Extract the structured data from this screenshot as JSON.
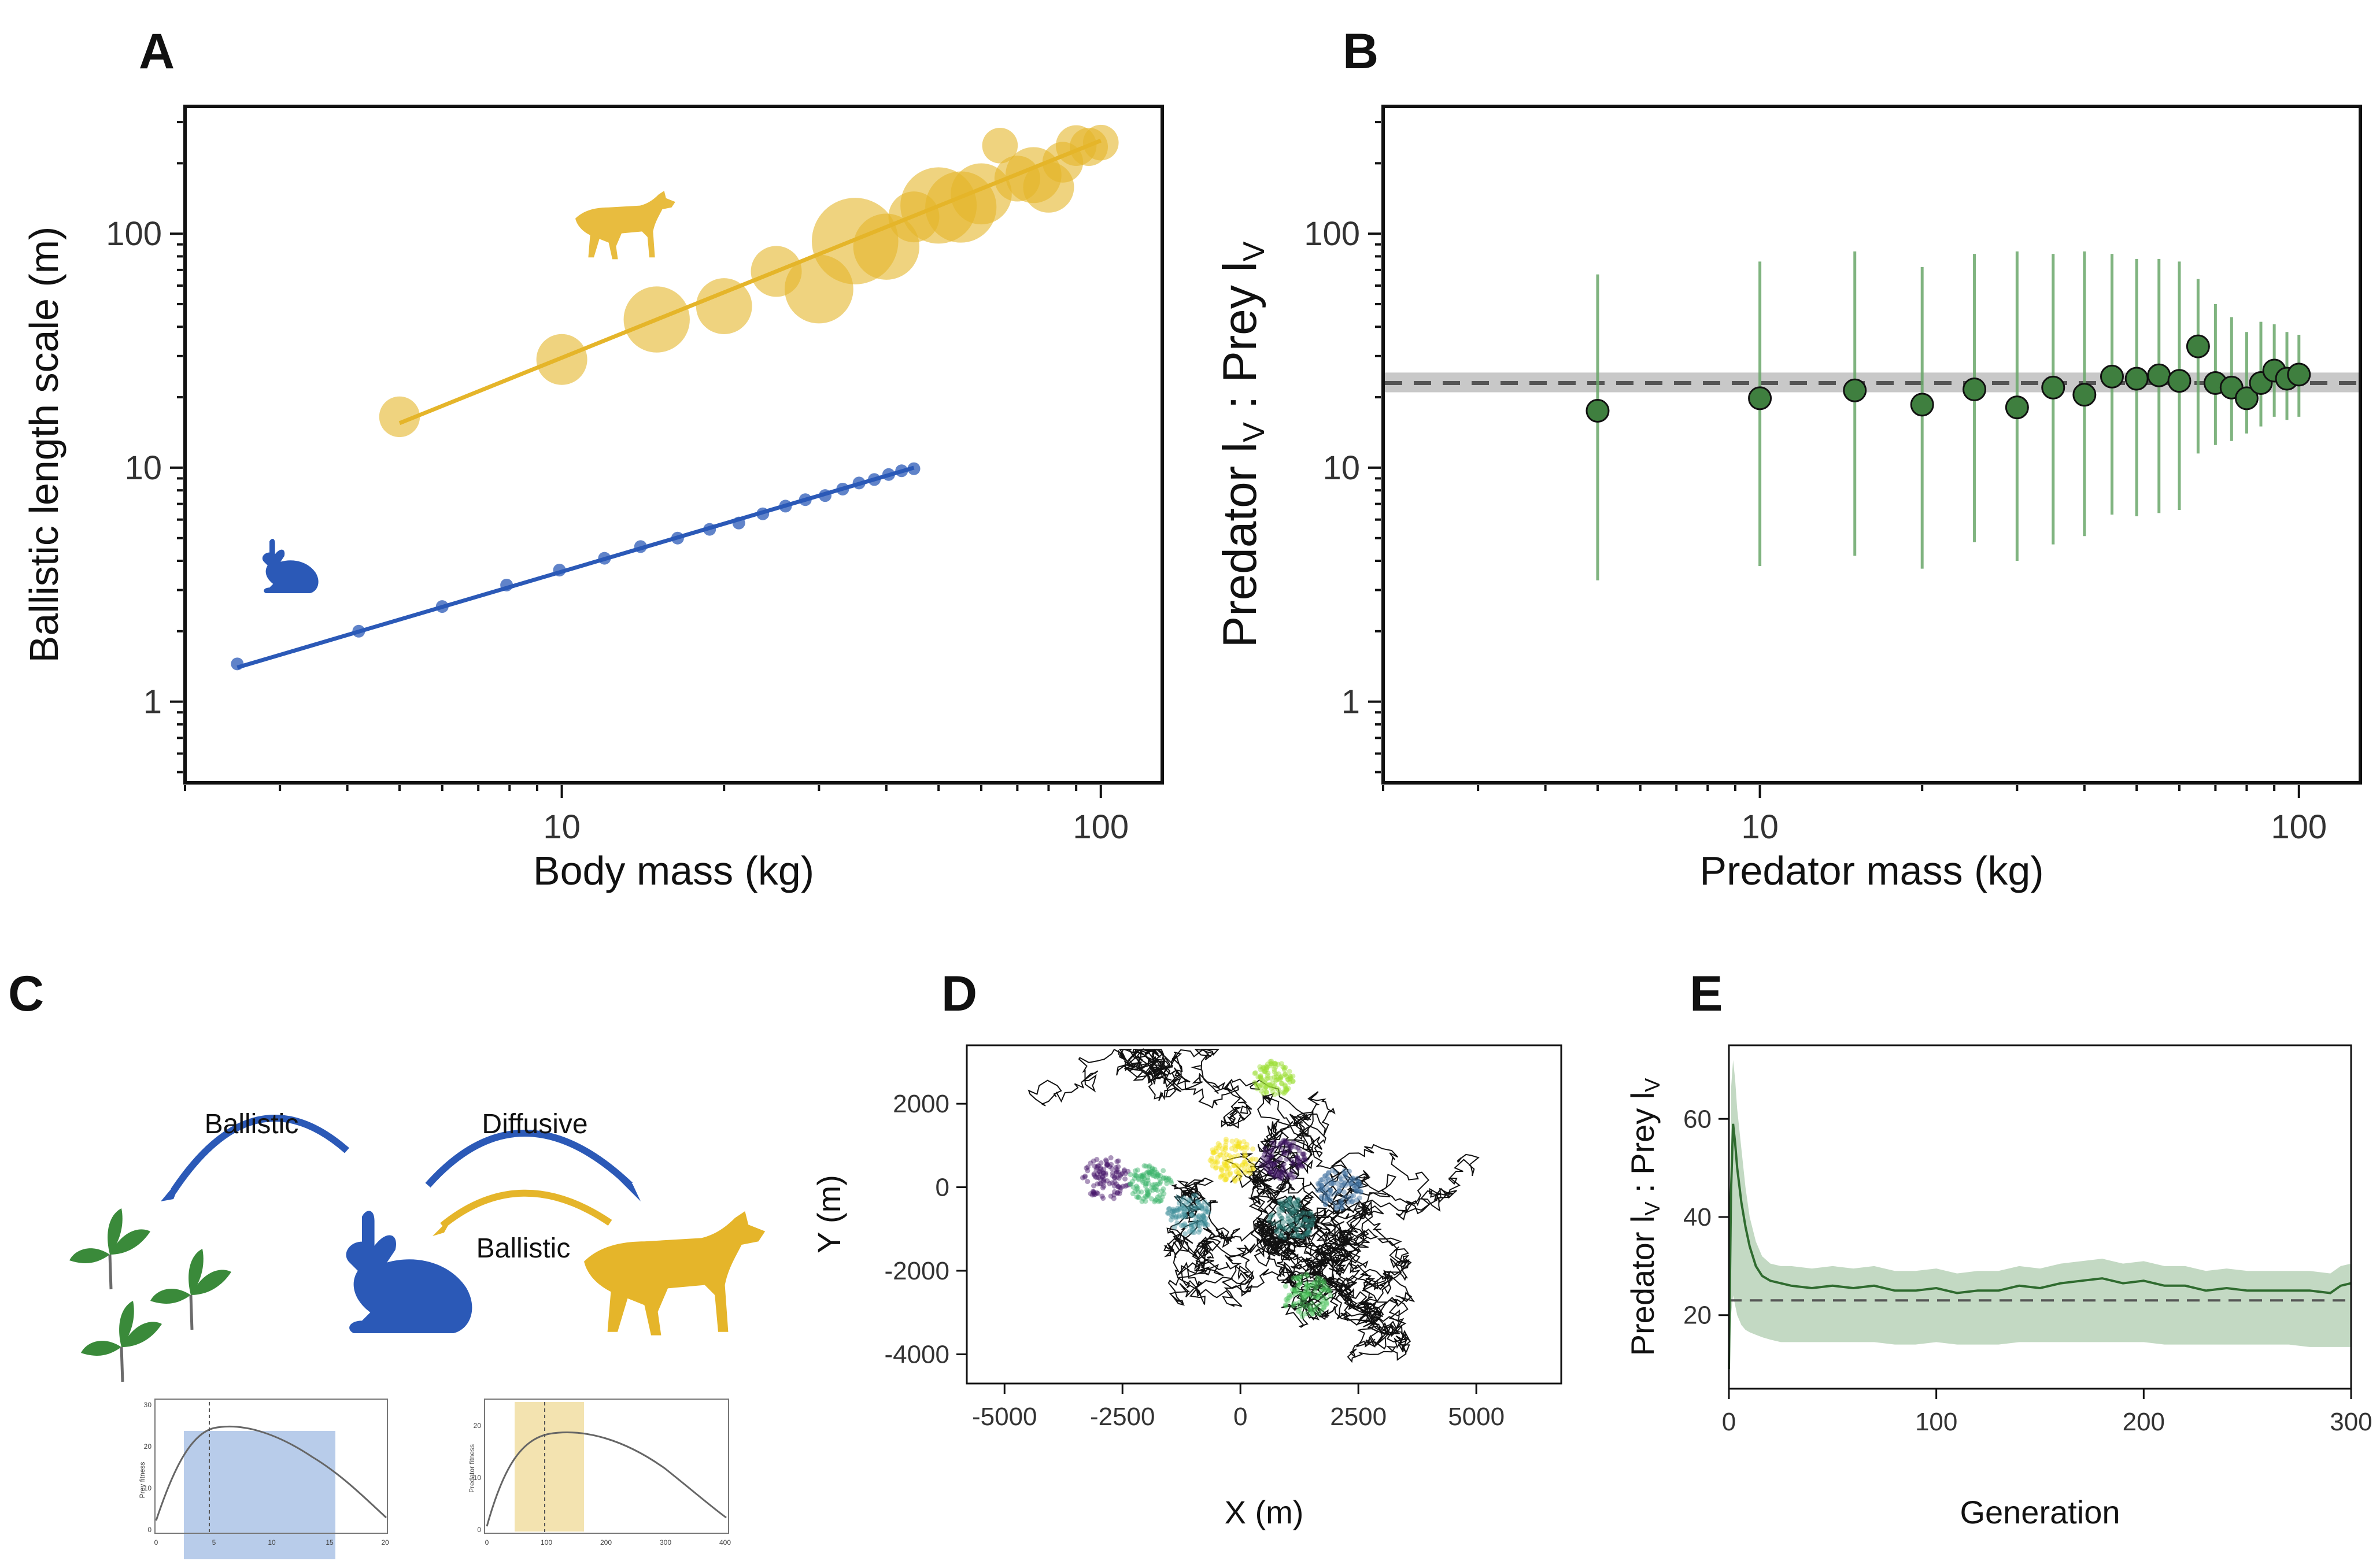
{
  "panels": {
    "A": "A",
    "B": "B",
    "C": "C",
    "D": "D",
    "E": "E"
  },
  "chart_data": [
    {
      "id": "A",
      "type": "scatter",
      "xlabel": "Body mass (kg)",
      "ylabel": "Ballistic length scale (m)",
      "xscale": "log",
      "yscale": "log",
      "xlim": [
        2.0,
        130
      ],
      "ylim": [
        0.45,
        350
      ],
      "xticks": [
        10,
        100
      ],
      "xtick_labels": [
        "10",
        "100"
      ],
      "yticks": [
        1,
        10,
        100
      ],
      "ytick_labels": [
        "1",
        "10",
        "100"
      ],
      "series": [
        {
          "color": "#e5b52a",
          "points": [
            {
              "x": 5.0,
              "y": 16.5,
              "s": 1.6
            },
            {
              "x": 10.0,
              "y": 29,
              "s": 2.0
            },
            {
              "x": 15.0,
              "y": 43,
              "s": 2.6
            },
            {
              "x": 20.0,
              "y": 49,
              "s": 2.2
            },
            {
              "x": 25.0,
              "y": 69,
              "s": 2.0
            },
            {
              "x": 30.0,
              "y": 58,
              "s": 2.7
            },
            {
              "x": 35.0,
              "y": 93,
              "s": 3.4
            },
            {
              "x": 40.0,
              "y": 88,
              "s": 2.6
            },
            {
              "x": 45.0,
              "y": 118,
              "s": 2.0
            },
            {
              "x": 50.0,
              "y": 132,
              "s": 3.0
            },
            {
              "x": 55.0,
              "y": 130,
              "s": 2.8
            },
            {
              "x": 60.0,
              "y": 148,
              "s": 2.4
            },
            {
              "x": 65.0,
              "y": 238,
              "s": 1.4
            },
            {
              "x": 70.0,
              "y": 172,
              "s": 1.8
            },
            {
              "x": 75.0,
              "y": 178,
              "s": 2.2
            },
            {
              "x": 80.0,
              "y": 158,
              "s": 2.0
            },
            {
              "x": 85.0,
              "y": 202,
              "s": 1.6
            },
            {
              "x": 90.0,
              "y": 238,
              "s": 1.6
            },
            {
              "x": 95.0,
              "y": 235,
              "s": 1.5
            },
            {
              "x": 100.0,
              "y": 245,
              "s": 1.4
            }
          ],
          "fit": {
            "x": [
              5,
              100
            ],
            "y": [
              15.5,
              250
            ]
          }
        },
        {
          "color": "#2b59b7",
          "points": [
            {
              "x": 2.5,
              "y": 1.45
            },
            {
              "x": 4.2,
              "y": 2.0
            },
            {
              "x": 6.0,
              "y": 2.55
            },
            {
              "x": 7.9,
              "y": 3.15
            },
            {
              "x": 9.9,
              "y": 3.65
            },
            {
              "x": 12.0,
              "y": 4.1
            },
            {
              "x": 14.0,
              "y": 4.6
            },
            {
              "x": 16.4,
              "y": 5.0
            },
            {
              "x": 18.8,
              "y": 5.45
            },
            {
              "x": 21.3,
              "y": 5.8
            },
            {
              "x": 23.6,
              "y": 6.35
            },
            {
              "x": 26.0,
              "y": 6.85
            },
            {
              "x": 28.3,
              "y": 7.3
            },
            {
              "x": 30.8,
              "y": 7.6
            },
            {
              "x": 33.2,
              "y": 8.1
            },
            {
              "x": 35.6,
              "y": 8.6
            },
            {
              "x": 38.0,
              "y": 8.9
            },
            {
              "x": 40.4,
              "y": 9.35
            },
            {
              "x": 42.7,
              "y": 9.7
            },
            {
              "x": 45.0,
              "y": 9.9
            }
          ],
          "fit": {
            "x": [
              2.5,
              45
            ],
            "y": [
              1.4,
              10.0
            ]
          }
        }
      ]
    },
    {
      "id": "B",
      "type": "scatter",
      "xlabel": "Predator mass (kg)",
      "ylabel_parts": [
        "Predator l",
        "V",
        " : Prey l",
        "V"
      ],
      "xscale": "log",
      "yscale": "log",
      "xlim": [
        2.0,
        130
      ],
      "ylim": [
        0.45,
        350
      ],
      "xticks": [
        10,
        100
      ],
      "xtick_labels": [
        "10",
        "100"
      ],
      "yticks": [
        1,
        10,
        100
      ],
      "ytick_labels": [
        "1",
        "10",
        "100"
      ],
      "reference_line": {
        "y": 23,
        "band": [
          21,
          25.5
        ]
      },
      "points": [
        {
          "x": 5,
          "y": 17.5,
          "lo": 3.3,
          "hi": 67
        },
        {
          "x": 10,
          "y": 19.8,
          "lo": 3.8,
          "hi": 76
        },
        {
          "x": 15,
          "y": 21.4,
          "lo": 4.2,
          "hi": 84
        },
        {
          "x": 20,
          "y": 18.6,
          "lo": 3.7,
          "hi": 72
        },
        {
          "x": 25,
          "y": 21.6,
          "lo": 4.8,
          "hi": 82
        },
        {
          "x": 30,
          "y": 18.1,
          "lo": 4.0,
          "hi": 84
        },
        {
          "x": 35,
          "y": 22.0,
          "lo": 4.7,
          "hi": 82
        },
        {
          "x": 40,
          "y": 20.5,
          "lo": 5.1,
          "hi": 84
        },
        {
          "x": 45,
          "y": 24.5,
          "lo": 6.3,
          "hi": 82
        },
        {
          "x": 50,
          "y": 24.0,
          "lo": 6.2,
          "hi": 78
        },
        {
          "x": 55,
          "y": 24.8,
          "lo": 6.4,
          "hi": 78
        },
        {
          "x": 60,
          "y": 23.5,
          "lo": 6.6,
          "hi": 76
        },
        {
          "x": 65,
          "y": 33.0,
          "lo": 11.5,
          "hi": 64
        },
        {
          "x": 70,
          "y": 23.0,
          "lo": 12.5,
          "hi": 50
        },
        {
          "x": 75,
          "y": 22.0,
          "lo": 13.0,
          "hi": 44
        },
        {
          "x": 80,
          "y": 19.8,
          "lo": 14.0,
          "hi": 38
        },
        {
          "x": 85,
          "y": 23.0,
          "lo": 15.0,
          "hi": 42
        },
        {
          "x": 90,
          "y": 26.0,
          "lo": 16.5,
          "hi": 41
        },
        {
          "x": 95,
          "y": 24.0,
          "lo": 16.0,
          "hi": 38
        },
        {
          "x": 100,
          "y": 25.0,
          "lo": 16.5,
          "hi": 37
        }
      ]
    },
    {
      "id": "D",
      "type": "scatter",
      "xlabel": "X (m)",
      "ylabel": "Y (m)",
      "xlim": [
        -5800,
        6800
      ],
      "ylim": [
        -4700,
        3400
      ],
      "xticks": [
        -5000,
        -2500,
        0,
        2500,
        5000
      ],
      "xtick_labels": [
        "-5000",
        "-2500",
        "0",
        "2500",
        "5000"
      ],
      "yticks": [
        -4000,
        -2000,
        0,
        2000
      ],
      "ytick_labels": [
        "-4000",
        "-2000",
        "0",
        "2000"
      ],
      "clusters": [
        {
          "cx": -2850,
          "cy": 200,
          "r": 520,
          "color": "#46166b"
        },
        {
          "cx": -1900,
          "cy": 100,
          "r": 480,
          "color": "#3cb46a"
        },
        {
          "cx": -1100,
          "cy": -650,
          "r": 480,
          "color": "#3f8d9a"
        },
        {
          "cx": -150,
          "cy": 650,
          "r": 520,
          "color": "#f4e017"
        },
        {
          "cx": 900,
          "cy": 650,
          "r": 480,
          "color": "#3e1762"
        },
        {
          "cx": 1100,
          "cy": -750,
          "r": 500,
          "color": "#2c7c75"
        },
        {
          "cx": 2100,
          "cy": -50,
          "r": 480,
          "color": "#3d6f9e"
        },
        {
          "cx": 700,
          "cy": 2600,
          "r": 420,
          "color": "#9bde33"
        },
        {
          "cx": 1400,
          "cy": -2600,
          "r": 520,
          "color": "#4cc45a"
        }
      ]
    },
    {
      "id": "E",
      "type": "line",
      "xlabel": "Generation",
      "ylabel_parts": [
        "Predator l",
        "V",
        " : Prey l",
        "V"
      ],
      "xlim": [
        0,
        300
      ],
      "ylim": [
        5,
        75
      ],
      "xticks": [
        0,
        100,
        200,
        300
      ],
      "xtick_labels": [
        "0",
        "100",
        "200",
        "300"
      ],
      "yticks": [
        20,
        40,
        60
      ],
      "ytick_labels": [
        "20",
        "40",
        "60"
      ],
      "reference_line": {
        "y": 23
      },
      "series": [
        {
          "color": "#2f6b2f",
          "x": [
            0,
            1,
            2,
            3,
            4,
            6,
            8,
            10,
            13,
            16,
            20,
            25,
            30,
            40,
            50,
            60,
            70,
            80,
            90,
            100,
            110,
            120,
            130,
            140,
            150,
            160,
            170,
            180,
            190,
            200,
            210,
            220,
            230,
            240,
            250,
            260,
            270,
            280,
            290,
            295,
            300
          ],
          "y": [
            9,
            45,
            59,
            55,
            50,
            43,
            38,
            34,
            30,
            28,
            27,
            26.5,
            26,
            25.5,
            26,
            25.5,
            26,
            25,
            25,
            25.5,
            24.5,
            25,
            25,
            26,
            25.5,
            26.5,
            27,
            27.5,
            26.5,
            27,
            26,
            26,
            25,
            25.5,
            25,
            25,
            25,
            25,
            24.5,
            26,
            26.5
          ],
          "upper": [
            12,
            66,
            72,
            68,
            62,
            54,
            46,
            40,
            35,
            32,
            30.5,
            30,
            30,
            29.5,
            30,
            29.5,
            30,
            29,
            29,
            29.5,
            28.5,
            29,
            29,
            30,
            29.5,
            30.5,
            31,
            31.5,
            30.5,
            31,
            30,
            30,
            29,
            29.5,
            29,
            29,
            29,
            29,
            28.5,
            30,
            30.5
          ],
          "lower": [
            6,
            20,
            24,
            22,
            20,
            18,
            17,
            16.5,
            16,
            15.5,
            15,
            14.5,
            14.5,
            14.5,
            14.5,
            14.5,
            14.5,
            14,
            14,
            14.5,
            14,
            14,
            14,
            14.5,
            14.5,
            14.5,
            14.5,
            14.5,
            14.5,
            14.5,
            14,
            14,
            14,
            14,
            14,
            14,
            14,
            13.5,
            13.5,
            13.5,
            13.5
          ]
        }
      ]
    }
  ],
  "diagram_c": {
    "arrow_labels": {
      "ballistic_left": "Ballistic",
      "diffusive": "Diffusive",
      "ballistic_right": "Ballistic"
    },
    "colors": {
      "prey": "#2b59b7",
      "predator": "#e5b52a",
      "plant": "#3a8a3a",
      "arrow_blue": "#2b59b7",
      "arrow_gold": "#e5b52a"
    },
    "mini_prey": {
      "ylabel": "Prey fitness",
      "xticks": [
        "0",
        "5",
        "10",
        "15",
        "20"
      ],
      "yticks": [
        "0",
        "10",
        "20",
        "30"
      ],
      "band_color": "#7ea3d9"
    },
    "mini_predator": {
      "ylabel": "Predator fitness",
      "xticks": [
        "0",
        "100",
        "200",
        "300",
        "400"
      ],
      "yticks": [
        "0",
        "10",
        "20"
      ],
      "band_color": "#f0dc9c"
    }
  }
}
